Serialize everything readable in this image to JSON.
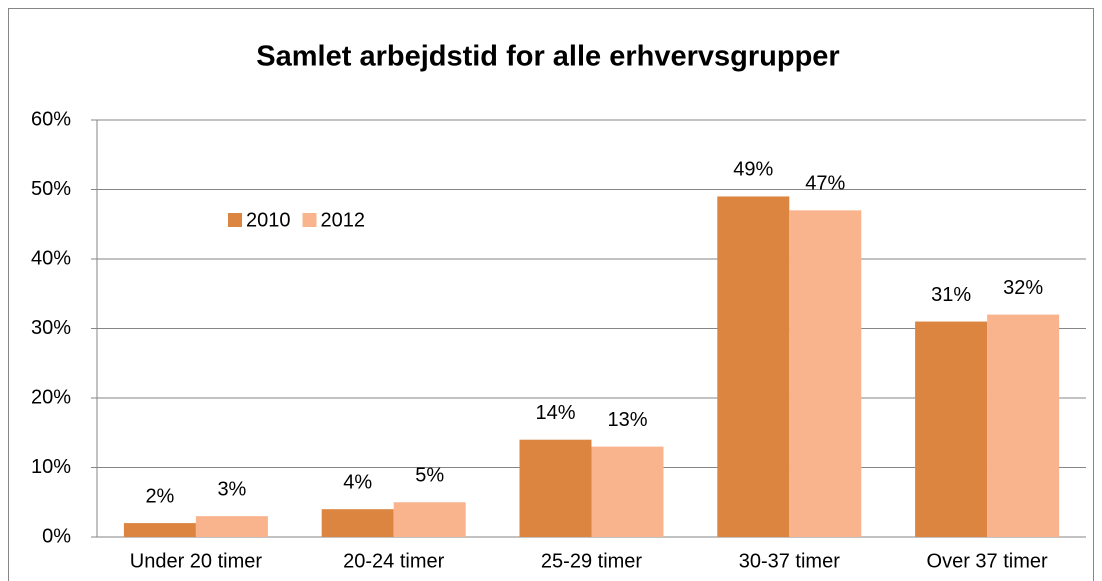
{
  "chart_data": {
    "type": "bar",
    "title": "Samlet arbejdstid for alle erhvervsgrupper",
    "categories": [
      "Under 20 timer",
      "20-24 timer",
      "25-29 timer",
      "30-37 timer",
      "Over 37 timer"
    ],
    "series": [
      {
        "name": "2010",
        "color": "#db8540",
        "values": [
          2,
          4,
          14,
          49,
          31
        ],
        "value_labels": [
          "2%",
          "4%",
          "14%",
          "49%",
          "31%"
        ]
      },
      {
        "name": "2012",
        "color": "#f9b48e",
        "values": [
          3,
          5,
          13,
          47,
          32
        ],
        "value_labels": [
          "3%",
          "5%",
          "13%",
          "47%",
          "32%"
        ]
      }
    ],
    "ylim": [
      0,
      60
    ],
    "yticks": [
      {
        "value": 0,
        "label": "0%"
      },
      {
        "value": 10,
        "label": "10%"
      },
      {
        "value": 20,
        "label": "20%"
      },
      {
        "value": 30,
        "label": "30%"
      },
      {
        "value": 40,
        "label": "40%"
      },
      {
        "value": 50,
        "label": "50%"
      },
      {
        "value": 60,
        "label": "60%"
      }
    ],
    "grid": true,
    "legend": "upper-left"
  }
}
